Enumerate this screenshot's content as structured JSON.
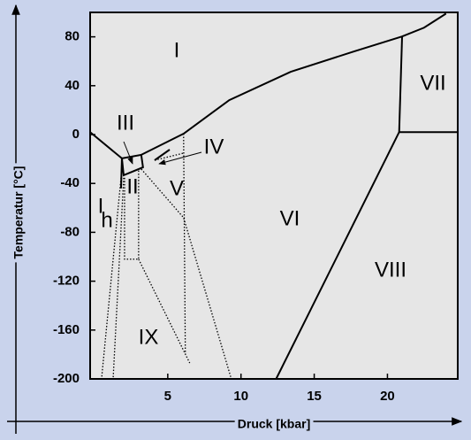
{
  "chart_data": {
    "type": "line",
    "xlabel": "Druck [kbar]",
    "ylabel": "Temperatur [°C]",
    "xlim": [
      -0.3,
      24.8
    ],
    "ylim": [
      -200,
      100
    ],
    "xticks": [
      5,
      10,
      15,
      20
    ],
    "yticks": [
      80,
      40,
      0,
      -40,
      -80,
      -120,
      -160,
      -200
    ],
    "color": "#000000",
    "series": [
      {
        "style": "solid",
        "x": [
          -0.3,
          1.87
        ],
        "values": [
          2,
          -19.5
        ]
      },
      {
        "style": "solid",
        "x": [
          1.87,
          3.19,
          3.31,
          1.99,
          1.87
        ],
        "values": [
          -19.5,
          -16.6,
          -26.8,
          -33.3,
          -19.5
        ]
      },
      {
        "style": "solid",
        "x": [
          1.87,
          1.81
        ],
        "values": [
          -19.5,
          -44
        ]
      },
      {
        "style": "solid",
        "x": [
          3.19,
          6.08
        ],
        "values": [
          -16.6,
          0.7
        ]
      },
      {
        "style": "solid",
        "x": [
          6.08,
          9.2,
          13.4,
          17.7,
          21,
          22.5,
          24
        ],
        "values": [
          0.7,
          28.2,
          51.4,
          68,
          80.3,
          87.5,
          99
        ]
      },
      {
        "style": "solid",
        "x": [
          21,
          20.8
        ],
        "values": [
          80.3,
          2
        ]
      },
      {
        "style": "solid",
        "x": [
          20.8,
          24.8
        ],
        "values": [
          2,
          2
        ]
      },
      {
        "style": "solid",
        "x": [
          20.8,
          12.4
        ],
        "values": [
          2,
          -200
        ]
      },
      {
        "style": "dotted",
        "x": [
          1.81,
          0.48
        ],
        "values": [
          -35.4,
          -200
        ]
      },
      {
        "style": "dotted",
        "x": [
          1.99,
          1.27
        ],
        "values": [
          -35.4,
          -200
        ]
      },
      {
        "style": "dotted",
        "x": [
          2.05,
          2.05,
          3.01,
          3.01
        ],
        "values": [
          -35.4,
          -102,
          -102,
          -28.2
        ]
      },
      {
        "style": "dotted",
        "x": [
          3.01,
          6.5
        ],
        "values": [
          -102,
          -187
        ]
      },
      {
        "style": "dotted",
        "x": [
          3.19,
          6.08,
          9.34
        ],
        "values": [
          -28.2,
          -68,
          -200
        ]
      },
      {
        "style": "dotted",
        "x": [
          6.08,
          6.2
        ],
        "values": [
          0.7,
          -180
        ]
      },
      {
        "style": "dotted",
        "x": [
          4.1,
          6.08
        ],
        "values": [
          -21,
          -15.2
        ]
      }
    ],
    "region_labels": [
      "I",
      "II",
      "III",
      "IV",
      "V",
      "VI",
      "VII",
      "VIII",
      "IX",
      "I",
      "h"
    ]
  }
}
